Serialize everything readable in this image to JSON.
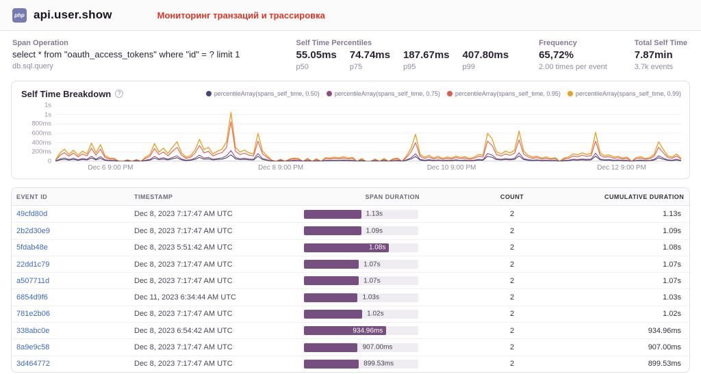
{
  "header": {
    "platform_badge": "php",
    "title": "api.user.show",
    "annotation": "Мониторинг транзаций и трассировка"
  },
  "span_info": {
    "label": "Span Operation",
    "query": "select * from \"oauth_access_tokens\" where \"id\" = ? limit 1",
    "op": "db.sql.query"
  },
  "stats": {
    "percentiles_label": "Self Time Percentiles",
    "percentiles": [
      {
        "value": "55.05ms",
        "label": "p50"
      },
      {
        "value": "74.74ms",
        "label": "p75"
      },
      {
        "value": "187.67ms",
        "label": "p95"
      },
      {
        "value": "407.80ms",
        "label": "p99"
      }
    ],
    "frequency": {
      "label": "Frequency",
      "value": "65,72%",
      "sub": "2.00 times per event"
    },
    "total": {
      "label": "Total Self Time",
      "value": "7.87min",
      "sub": "3.7k events"
    }
  },
  "chart": {
    "title": "Self Time Breakdown",
    "help_icon": "?",
    "y_ticks": [
      "1s",
      "1s",
      "800ms",
      "600ms",
      "400ms",
      "200ms",
      "0"
    ],
    "x_ticks": [
      {
        "label": "Dec 6 9:00 PM",
        "pos": 0.088
      },
      {
        "label": "Dec 8 9:00 PM",
        "pos": 0.36
      },
      {
        "label": "Dec 10 9:00 PM",
        "pos": 0.633
      },
      {
        "label": "Dec 12 9:00 PM",
        "pos": 0.905
      }
    ]
  },
  "chart_data": {
    "type": "line",
    "title": "Self Time Breakdown",
    "unit": "ms",
    "ylim": [
      0,
      1200
    ],
    "x_range": [
      "Dec 6",
      "Dec 13"
    ],
    "grid": true,
    "legend_position": "top-right",
    "series": [
      {
        "name": "percentileArray(spans_self_time, 0.50)",
        "color": "#444674",
        "values": [
          4,
          32,
          47,
          27,
          43,
          23,
          40,
          29,
          70,
          32,
          65,
          22,
          13,
          12,
          2,
          0,
          6,
          0,
          7,
          0,
          16,
          27,
          68,
          36,
          50,
          31,
          54,
          76,
          32,
          16,
          22,
          43,
          85,
          45,
          54,
          29,
          40,
          47,
          76,
          140,
          54,
          36,
          43,
          32,
          29,
          108,
          40,
          22,
          5,
          0,
          8,
          0,
          9,
          13,
          11,
          0,
          12,
          0,
          10,
          0,
          14,
          13,
          16,
          14,
          18,
          13,
          15,
          0,
          11,
          0,
          0,
          9,
          0,
          11,
          0,
          10,
          13,
          0,
          22,
          50,
          104,
          27,
          16,
          23,
          13,
          20,
          11,
          17,
          13,
          21,
          14,
          18,
          11,
          16,
          27,
          23,
          108,
          86,
          36,
          29,
          40,
          32,
          43,
          117,
          40,
          23,
          16,
          20,
          13,
          17,
          11,
          14,
          0,
          13,
          16,
          29,
          25,
          32,
          27,
          31,
          112,
          32,
          22,
          25,
          16,
          20,
          13,
          16,
          0,
          14,
          18,
          11,
          14,
          27,
          76,
          47,
          22,
          16,
          29,
          11
        ]
      },
      {
        "name": "percentileArray(spans_self_time, 0.75)",
        "color": "#8d4a84",
        "values": [
          6,
          50,
          73,
          42,
          67,
          36,
          62,
          45,
          109,
          50,
          101,
          34,
          20,
          18,
          3,
          0,
          10,
          0,
          11,
          0,
          25,
          42,
          106,
          56,
          78,
          48,
          84,
          118,
          50,
          25,
          34,
          67,
          132,
          70,
          84,
          45,
          62,
          73,
          118,
          230,
          84,
          56,
          67,
          50,
          45,
          168,
          62,
          34,
          8,
          0,
          13,
          0,
          14,
          20,
          17,
          0,
          18,
          0,
          15,
          0,
          22,
          20,
          25,
          21,
          28,
          20,
          24,
          0,
          17,
          0,
          0,
          14,
          0,
          17,
          0,
          15,
          20,
          0,
          34,
          78,
          162,
          42,
          25,
          36,
          20,
          31,
          17,
          27,
          20,
          32,
          22,
          28,
          17,
          25,
          42,
          36,
          168,
          134,
          56,
          45,
          62,
          50,
          67,
          182,
          62,
          36,
          25,
          31,
          20,
          27,
          17,
          22,
          0,
          20,
          25,
          45,
          39,
          50,
          42,
          48,
          174,
          50,
          34,
          39,
          25,
          31,
          20,
          25,
          0,
          22,
          28,
          17,
          22,
          42,
          118,
          73,
          34,
          25,
          45,
          17
        ]
      },
      {
        "name": "percentileArray(spans_self_time, 0.95)",
        "color": "#e5584e",
        "values": [
          15,
          130,
          185,
          110,
          175,
          95,
          160,
          115,
          280,
          130,
          260,
          85,
          50,
          45,
          5,
          0,
          25,
          0,
          30,
          0,
          65,
          110,
          275,
          145,
          200,
          120,
          215,
          300,
          130,
          65,
          85,
          175,
          340,
          180,
          215,
          115,
          160,
          185,
          300,
          850,
          215,
          145,
          175,
          130,
          115,
          430,
          160,
          85,
          20,
          0,
          32,
          0,
          36,
          50,
          43,
          0,
          47,
          0,
          40,
          0,
          58,
          50,
          65,
          54,
          72,
          50,
          61,
          0,
          43,
          0,
          0,
          36,
          0,
          43,
          0,
          40,
          50,
          0,
          86,
          200,
          400,
          108,
          65,
          94,
          50,
          79,
          43,
          68,
          50,
          83,
          58,
          72,
          43,
          65,
          108,
          94,
          430,
          340,
          144,
          115,
          158,
          130,
          173,
          460,
          158,
          94,
          65,
          79,
          50,
          68,
          43,
          58,
          0,
          50,
          65,
          115,
          100,
          130,
          108,
          122,
          430,
          130,
          86,
          100,
          65,
          79,
          50,
          65,
          0,
          58,
          72,
          43,
          58,
          108,
          300,
          187,
          86,
          65,
          115,
          43
        ]
      },
      {
        "name": "percentileArray(spans_self_time, 0.99)",
        "color": "#efa023",
        "values": [
          20,
          180,
          260,
          150,
          240,
          130,
          220,
          160,
          390,
          180,
          360,
          120,
          70,
          65,
          10,
          0,
          35,
          0,
          40,
          0,
          90,
          150,
          380,
          200,
          280,
          170,
          300,
          420,
          180,
          90,
          120,
          240,
          470,
          250,
          300,
          160,
          220,
          260,
          420,
          1050,
          300,
          200,
          240,
          180,
          160,
          600,
          220,
          120,
          30,
          0,
          45,
          0,
          50,
          70,
          60,
          0,
          65,
          0,
          55,
          0,
          80,
          70,
          90,
          75,
          100,
          70,
          85,
          0,
          60,
          0,
          0,
          50,
          0,
          60,
          0,
          55,
          70,
          0,
          120,
          280,
          580,
          150,
          90,
          130,
          70,
          110,
          60,
          95,
          70,
          115,
          80,
          100,
          60,
          90,
          150,
          130,
          600,
          480,
          200,
          160,
          220,
          180,
          240,
          650,
          220,
          130,
          90,
          110,
          70,
          95,
          60,
          80,
          0,
          70,
          90,
          160,
          140,
          180,
          150,
          170,
          620,
          180,
          120,
          140,
          90,
          110,
          70,
          90,
          0,
          80,
          100,
          60,
          80,
          150,
          420,
          260,
          120,
          90,
          160,
          60
        ]
      }
    ]
  },
  "table": {
    "columns": [
      "EVENT ID",
      "TIMESTAMP",
      "SPAN DURATION",
      "COUNT",
      "CUMULATIVE DURATION"
    ],
    "bar_colors": {
      "fill": "#764e80",
      "track": "#efecf2"
    },
    "rows": [
      {
        "event_id": "49cfd80d",
        "timestamp": "Dec 8, 2023 7:17:47 AM UTC",
        "duration": "1.13s",
        "pct": 50,
        "inside": false,
        "count": "2",
        "cumulative": "1.13s"
      },
      {
        "event_id": "2b2d30e9",
        "timestamp": "Dec 8, 2023 7:17:47 AM UTC",
        "duration": "1.09s",
        "pct": 50,
        "inside": false,
        "count": "2",
        "cumulative": "1.09s"
      },
      {
        "event_id": "5fdab48e",
        "timestamp": "Dec 8, 2023 5:51:42 AM UTC",
        "duration": "1.08s",
        "pct": 74.5,
        "inside": true,
        "count": "2",
        "cumulative": "1.08s"
      },
      {
        "event_id": "22dd1c79",
        "timestamp": "Dec 8, 2023 7:17:47 AM UTC",
        "duration": "1.07s",
        "pct": 48,
        "inside": false,
        "count": "2",
        "cumulative": "1.07s"
      },
      {
        "event_id": "a507711d",
        "timestamp": "Dec 8, 2023 7:17:47 AM UTC",
        "duration": "1.07s",
        "pct": 48,
        "inside": false,
        "count": "2",
        "cumulative": "1.07s"
      },
      {
        "event_id": "6854d9f6",
        "timestamp": "Dec 11, 2023 6:34:44 AM UTC",
        "duration": "1.03s",
        "pct": 47,
        "inside": false,
        "count": "2",
        "cumulative": "1.03s"
      },
      {
        "event_id": "781e2b06",
        "timestamp": "Dec 8, 2023 7:17:47 AM UTC",
        "duration": "1.02s",
        "pct": 51,
        "inside": false,
        "count": "2",
        "cumulative": "1.02s"
      },
      {
        "event_id": "338abc0e",
        "timestamp": "Dec 8, 2023 6:54:42 AM UTC",
        "duration": "934.96ms",
        "pct": 72,
        "inside": true,
        "count": "2",
        "cumulative": "934.96ms"
      },
      {
        "event_id": "8a9e9c58",
        "timestamp": "Dec 8, 2023 7:17:47 AM UTC",
        "duration": "907.00ms",
        "pct": 47,
        "inside": false,
        "count": "2",
        "cumulative": "907.00ms"
      },
      {
        "event_id": "3d464772",
        "timestamp": "Dec 8, 2023 7:17:47 AM UTC",
        "duration": "899.53ms",
        "pct": 48,
        "inside": false,
        "count": "2",
        "cumulative": "899.53ms"
      }
    ]
  }
}
